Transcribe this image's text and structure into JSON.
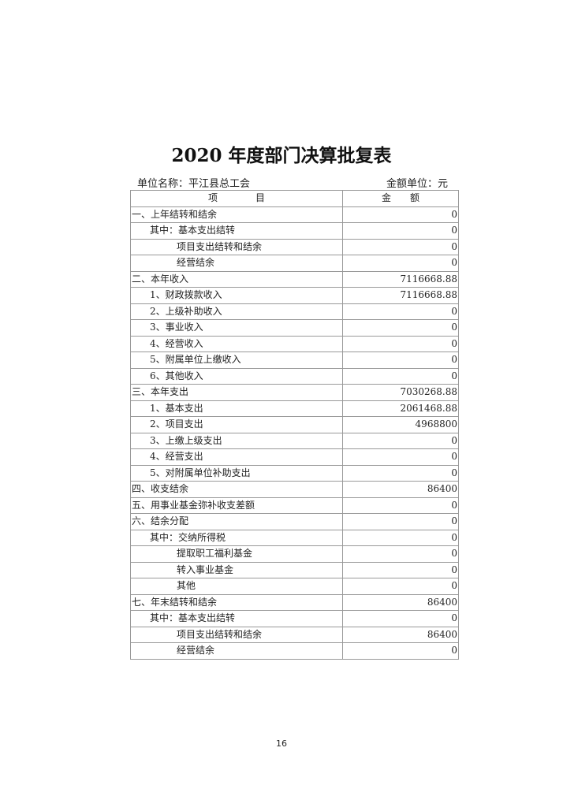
{
  "title": "2020 年度部门决算批复表",
  "unit_name": "单位名称：平江县总工会",
  "amount_unit": "金额单位：元",
  "headers": {
    "item": "项　　　　目",
    "amount": "金　　额"
  },
  "rows": [
    {
      "label": "一、上年结转和结余",
      "amount": "0",
      "level": 0
    },
    {
      "label": "其中：基本支出结转",
      "amount": "0",
      "level": 1
    },
    {
      "label": "项目支出结转和结余",
      "amount": "0",
      "level": 2
    },
    {
      "label": "经营结余",
      "amount": "0",
      "level": 2
    },
    {
      "label": "二、本年收入",
      "amount": "7116668.88",
      "level": 0
    },
    {
      "label": "1、财政拨款收入",
      "amount": "7116668.88",
      "level": 1
    },
    {
      "label": "2、上级补助收入",
      "amount": "0",
      "level": 1
    },
    {
      "label": "3、事业收入",
      "amount": "0",
      "level": 1
    },
    {
      "label": "4、经营收入",
      "amount": "0",
      "level": 1
    },
    {
      "label": "5、附属单位上缴收入",
      "amount": "0",
      "level": 1
    },
    {
      "label": "6、其他收入",
      "amount": "0",
      "level": 1
    },
    {
      "label": "三、本年支出",
      "amount": "7030268.88",
      "level": 0
    },
    {
      "label": "1、基本支出",
      "amount": "2061468.88",
      "level": 1
    },
    {
      "label": "2、项目支出",
      "amount": "4968800",
      "level": 1
    },
    {
      "label": "3、上缴上级支出",
      "amount": "0",
      "level": 1
    },
    {
      "label": "4、经营支出",
      "amount": "0",
      "level": 1
    },
    {
      "label": "5、对附属单位补助支出",
      "amount": "0",
      "level": 1
    },
    {
      "label": "四、收支结余",
      "amount": "86400",
      "level": 0
    },
    {
      "label": "五、用事业基金弥补收支差额",
      "amount": "0",
      "level": 0
    },
    {
      "label": "六、结余分配",
      "amount": "0",
      "level": 0
    },
    {
      "label": "其中：交纳所得税",
      "amount": "0",
      "level": 1
    },
    {
      "label": "提取职工福利基金",
      "amount": "0",
      "level": 2
    },
    {
      "label": "转入事业基金",
      "amount": "0",
      "level": 2
    },
    {
      "label": "其他",
      "amount": "0",
      "level": 2
    },
    {
      "label": "七、年末结转和结余",
      "amount": "86400",
      "level": 0
    },
    {
      "label": "其中：基本支出结转",
      "amount": "0",
      "level": 1
    },
    {
      "label": "项目支出结转和结余",
      "amount": "86400",
      "level": 2
    },
    {
      "label": "经营结余",
      "amount": "0",
      "level": 2
    }
  ],
  "page_number": "16"
}
